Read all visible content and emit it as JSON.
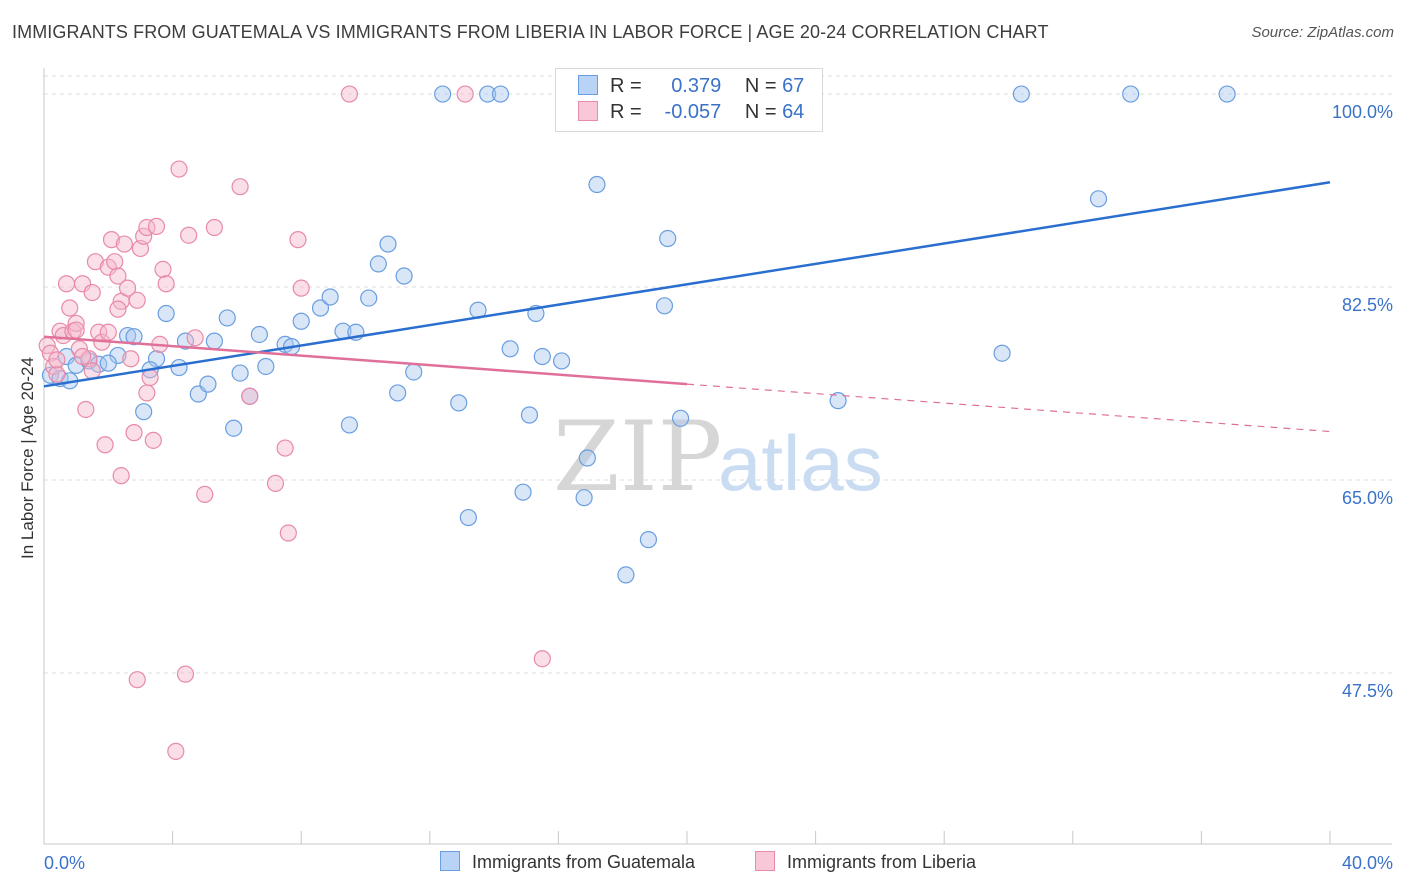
{
  "title": "IMMIGRANTS FROM GUATEMALA VS IMMIGRANTS FROM LIBERIA IN LABOR FORCE | AGE 20-24 CORRELATION CHART",
  "source": "Source: ZipAtlas.com",
  "watermark": {
    "zip": "ZIP",
    "atlas": "atlas"
  },
  "legend": {
    "r_label": "R =",
    "n_label": "N =",
    "rows": [
      {
        "r": "0.379",
        "n": "67"
      },
      {
        "r": "-0.057",
        "n": "64"
      }
    ]
  },
  "colors": {
    "blue_fill": "#a8c8f0",
    "blue_stroke": "#6a9ee0",
    "blue_line": "#2a6fd0",
    "pink_fill": "#f5b8cc",
    "pink_stroke": "#e88aa8",
    "pink_line": "#e0709a",
    "tick_label": "#3a72c9",
    "grid": "#dedede"
  },
  "chart_data": {
    "type": "scatter",
    "xlabel": "",
    "ylabel": "In Labor Force | Age 20-24",
    "xlim": [
      0,
      40
    ],
    "ylim": [
      32,
      102
    ],
    "x_tick_labels": {
      "min": "0.0%",
      "max": "40.0%"
    },
    "y_ticks": [
      {
        "value": 100,
        "label": "100.0%"
      },
      {
        "value": 82.5,
        "label": "82.5%"
      },
      {
        "value": 65,
        "label": "65.0%"
      },
      {
        "value": 47.5,
        "label": "47.5%"
      }
    ],
    "grid": true,
    "legend_position": "top-center",
    "series": [
      {
        "name": "Immigrants from Guatemala",
        "color": "#a8c8f0",
        "trend": {
          "x0": 0,
          "y0": 73.5,
          "x1": 40,
          "y1": 92.0,
          "dashed_from": null
        },
        "points": [
          [
            0.2,
            74.5
          ],
          [
            0.5,
            74.2
          ],
          [
            0.7,
            76.2
          ],
          [
            1.0,
            75.4
          ],
          [
            1.4,
            75.8
          ],
          [
            1.7,
            75.5
          ],
          [
            2.3,
            76.3
          ],
          [
            2.6,
            78.1
          ],
          [
            2.8,
            78.0
          ],
          [
            3.1,
            71.2
          ],
          [
            3.5,
            76.0
          ],
          [
            3.8,
            80.1
          ],
          [
            4.2,
            75.2
          ],
          [
            4.4,
            77.6
          ],
          [
            4.8,
            72.8
          ],
          [
            5.1,
            73.7
          ],
          [
            5.3,
            77.6
          ],
          [
            5.7,
            79.7
          ],
          [
            5.9,
            69.7
          ],
          [
            6.1,
            74.7
          ],
          [
            6.4,
            72.6
          ],
          [
            6.7,
            78.2
          ],
          [
            6.9,
            75.3
          ],
          [
            7.5,
            77.3
          ],
          [
            7.7,
            77.1
          ],
          [
            8.0,
            79.4
          ],
          [
            8.6,
            80.6
          ],
          [
            8.9,
            81.6
          ],
          [
            9.3,
            78.5
          ],
          [
            9.5,
            70.0
          ],
          [
            9.7,
            78.4
          ],
          [
            10.1,
            81.5
          ],
          [
            10.4,
            84.6
          ],
          [
            10.7,
            86.4
          ],
          [
            11.0,
            72.9
          ],
          [
            11.2,
            83.5
          ],
          [
            11.5,
            74.8
          ],
          [
            12.4,
            100.0
          ],
          [
            12.9,
            72.0
          ],
          [
            13.2,
            61.6
          ],
          [
            13.5,
            80.4
          ],
          [
            13.8,
            100.0
          ],
          [
            14.2,
            100.0
          ],
          [
            14.5,
            76.9
          ],
          [
            14.9,
            63.9
          ],
          [
            15.1,
            70.9
          ],
          [
            15.3,
            80.1
          ],
          [
            15.5,
            76.2
          ],
          [
            16.1,
            75.8
          ],
          [
            16.2,
            98.3
          ],
          [
            16.8,
            63.4
          ],
          [
            16.9,
            67.0
          ],
          [
            17.2,
            91.8
          ],
          [
            18.1,
            56.4
          ],
          [
            18.8,
            59.6
          ],
          [
            19.3,
            80.8
          ],
          [
            19.4,
            86.9
          ],
          [
            19.8,
            70.6
          ],
          [
            24.7,
            72.2
          ],
          [
            29.8,
            76.5
          ],
          [
            30.4,
            100.0
          ],
          [
            32.8,
            90.5
          ],
          [
            33.8,
            100.0
          ],
          [
            36.8,
            100.0
          ],
          [
            0.8,
            74.0
          ],
          [
            2.0,
            75.6
          ],
          [
            3.3,
            75.0
          ]
        ]
      },
      {
        "name": "Immigrants from Liberia",
        "color": "#f5b8cc",
        "trend": {
          "x0": 0,
          "y0": 78.0,
          "x1": 40,
          "y1": 69.4,
          "dashed_from": 20
        },
        "points": [
          [
            0.1,
            77.2
          ],
          [
            0.2,
            76.5
          ],
          [
            0.3,
            75.3
          ],
          [
            0.4,
            74.6
          ],
          [
            0.5,
            78.5
          ],
          [
            0.6,
            78.1
          ],
          [
            0.7,
            82.8
          ],
          [
            0.8,
            80.6
          ],
          [
            0.9,
            78.5
          ],
          [
            1.0,
            79.2
          ],
          [
            1.1,
            76.9
          ],
          [
            1.2,
            82.8
          ],
          [
            1.3,
            71.4
          ],
          [
            1.4,
            76.0
          ],
          [
            1.5,
            82.0
          ],
          [
            1.6,
            84.8
          ],
          [
            1.7,
            78.4
          ],
          [
            1.8,
            77.5
          ],
          [
            1.9,
            68.2
          ],
          [
            2.0,
            84.3
          ],
          [
            2.1,
            86.8
          ],
          [
            2.2,
            84.8
          ],
          [
            2.3,
            83.5
          ],
          [
            2.4,
            65.4
          ],
          [
            2.4,
            81.2
          ],
          [
            2.5,
            86.4
          ],
          [
            2.6,
            82.4
          ],
          [
            2.7,
            76.0
          ],
          [
            2.8,
            69.3
          ],
          [
            2.9,
            81.3
          ],
          [
            3.0,
            86.0
          ],
          [
            3.1,
            87.1
          ],
          [
            3.2,
            87.9
          ],
          [
            3.2,
            72.9
          ],
          [
            3.3,
            74.3
          ],
          [
            3.4,
            68.6
          ],
          [
            3.5,
            88.0
          ],
          [
            3.7,
            84.1
          ],
          [
            3.8,
            82.8
          ],
          [
            4.1,
            40.4
          ],
          [
            4.2,
            93.2
          ],
          [
            4.4,
            47.4
          ],
          [
            4.5,
            87.2
          ],
          [
            4.7,
            77.9
          ],
          [
            5.0,
            63.7
          ],
          [
            5.3,
            87.9
          ],
          [
            6.1,
            91.6
          ],
          [
            6.4,
            72.6
          ],
          [
            7.2,
            64.7
          ],
          [
            7.5,
            67.9
          ],
          [
            7.6,
            60.2
          ],
          [
            7.9,
            86.8
          ],
          [
            8.0,
            82.4
          ],
          [
            9.5,
            100.0
          ],
          [
            13.1,
            100.0
          ],
          [
            15.5,
            48.8
          ],
          [
            2.9,
            46.9
          ],
          [
            1.2,
            76.2
          ],
          [
            0.4,
            75.9
          ],
          [
            2.0,
            78.4
          ],
          [
            1.5,
            74.9
          ],
          [
            3.6,
            77.3
          ],
          [
            1.0,
            78.6
          ],
          [
            2.3,
            80.5
          ]
        ]
      }
    ]
  }
}
